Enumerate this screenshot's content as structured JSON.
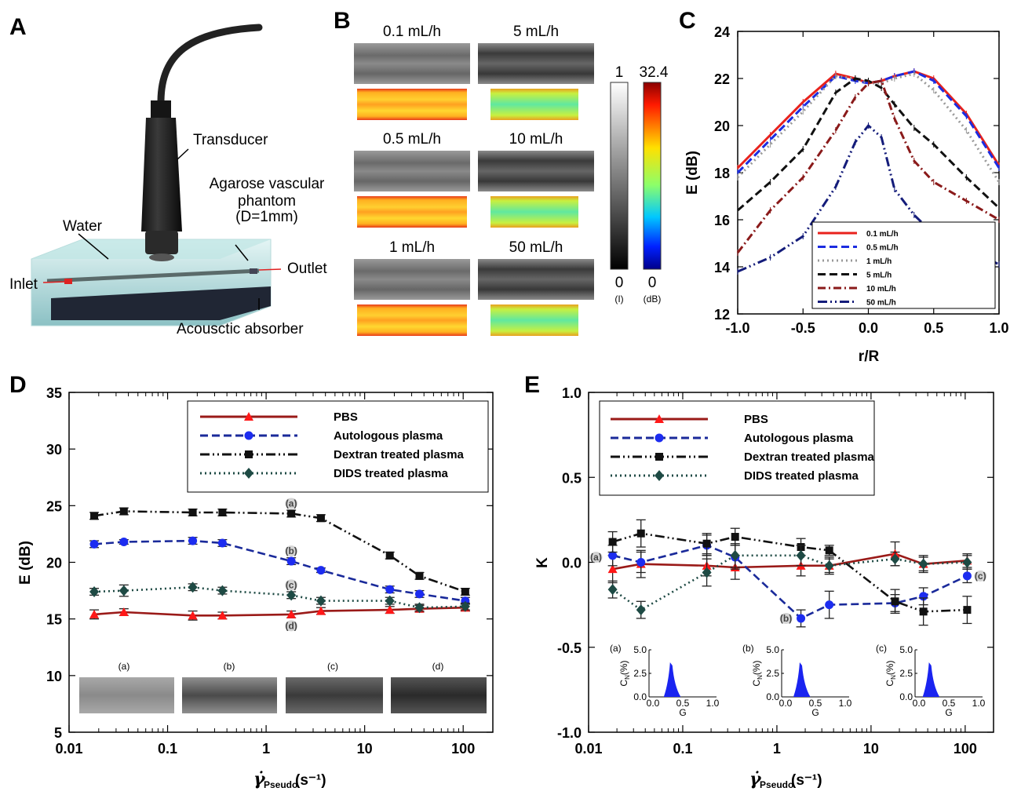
{
  "panel_labels": [
    "A",
    "B",
    "C",
    "D",
    "E"
  ],
  "panel_a": {
    "labels": {
      "transducer": "Transducer",
      "phantom_line1": "Agarose vascular",
      "phantom_line2": "phantom",
      "phantom_line3": "(D=1mm)",
      "water": "Water",
      "inlet": "Inlet",
      "outlet": "Outlet",
      "absorber": "Acousctic absorber"
    }
  },
  "panel_b": {
    "flow_rates": [
      "0.1 mL/h",
      "5 mL/h",
      "0.5 mL/h",
      "10 mL/h",
      "1 mL/h",
      "50 mL/h"
    ],
    "gray_scale": {
      "max": "1",
      "min": "0",
      "unit": "(I)"
    },
    "color_scale": {
      "max": "32.4",
      "min": "0",
      "unit": "(dB)"
    },
    "colors": {
      "high": "#c8141b",
      "mid": "#ffef2a",
      "low": "#1838c8"
    }
  },
  "chart_data": [
    {
      "panel": "C",
      "type": "line",
      "xlabel": "r/R",
      "ylabel": "E (dB)",
      "xlim": [
        -1.0,
        1.0
      ],
      "ylim": [
        12,
        24
      ],
      "xticks": [
        "-1.0",
        "-0.5",
        "0.0",
        "0.5",
        "1.0"
      ],
      "yticks": [
        "12",
        "14",
        "16",
        "18",
        "20",
        "22",
        "24"
      ],
      "legend_position": "bottom-right",
      "x": [
        -1.0,
        -0.75,
        -0.5,
        -0.25,
        -0.1,
        0.0,
        0.1,
        0.2,
        0.35,
        0.5,
        0.75,
        1.0
      ],
      "series": [
        {
          "name": "0.1 mL/h",
          "color": "#e8221c",
          "style": "solid",
          "values": [
            18.2,
            19.6,
            21.0,
            22.2,
            22.0,
            21.8,
            21.9,
            22.1,
            22.3,
            22.0,
            20.5,
            18.3
          ]
        },
        {
          "name": "0.5 mL/h",
          "color": "#1c2ce0",
          "style": "dashed",
          "values": [
            18.0,
            19.4,
            20.8,
            22.1,
            21.9,
            21.8,
            21.9,
            22.1,
            22.3,
            21.9,
            20.4,
            18.2
          ]
        },
        {
          "name": "1 mL/h",
          "color": "#999999",
          "style": "dotted",
          "values": [
            17.8,
            19.2,
            20.6,
            22.1,
            22.0,
            21.8,
            21.8,
            22.0,
            22.2,
            21.5,
            19.8,
            17.6
          ]
        },
        {
          "name": "5 mL/h",
          "color": "#111111",
          "style": "dashed",
          "values": [
            16.4,
            17.6,
            19.0,
            21.4,
            22.0,
            21.9,
            21.6,
            20.9,
            19.9,
            19.2,
            17.8,
            16.5
          ]
        },
        {
          "name": "10 mL/h",
          "color": "#8a1a1a",
          "style": "dashdot",
          "values": [
            14.6,
            16.4,
            17.8,
            19.8,
            21.2,
            21.8,
            21.9,
            20.3,
            18.5,
            17.6,
            16.8,
            16.0
          ]
        },
        {
          "name": "50 mL/h",
          "color": "#141c7a",
          "style": "dashdotdot",
          "values": [
            13.8,
            14.4,
            15.3,
            17.4,
            19.3,
            20.0,
            19.5,
            17.3,
            16.2,
            15.4,
            14.8,
            14.1
          ]
        }
      ]
    },
    {
      "panel": "D",
      "type": "line",
      "xlabel": "(s⁻¹)",
      "xlabel_symbol": "γ̇",
      "xlabel_sub": "Pseudo",
      "ylabel": "E (dB)",
      "xscale": "log",
      "xlim": [
        0.01,
        200
      ],
      "ylim": [
        5,
        35
      ],
      "xticks": [
        "0.01",
        "0.1",
        "1",
        "10",
        "100"
      ],
      "yticks": [
        "5",
        "10",
        "15",
        "20",
        "25",
        "30",
        "35"
      ],
      "legend_position": "top-right",
      "x": [
        0.018,
        0.036,
        0.18,
        0.36,
        1.8,
        3.6,
        18,
        36,
        105
      ],
      "series": [
        {
          "name": "PBS",
          "color": "#9a1a18",
          "marker_color": "#ff1818",
          "marker": "triangle",
          "style": "solid",
          "values": [
            15.4,
            15.6,
            15.3,
            15.3,
            15.4,
            15.7,
            15.8,
            15.9,
            16.0
          ],
          "errors": [
            0.4,
            0.3,
            0.4,
            0.3,
            0.3,
            0.3,
            0.3,
            0.3,
            0.3
          ]
        },
        {
          "name": "Autologous plasma",
          "color": "#1a2a9a",
          "marker_color": "#1c2cf0",
          "marker": "circle",
          "style": "dashed",
          "values": [
            21.6,
            21.8,
            21.9,
            21.7,
            20.1,
            19.3,
            17.6,
            17.2,
            16.6
          ],
          "errors": [
            0.3,
            0.2,
            0.3,
            0.3,
            0.3,
            0.2,
            0.3,
            0.3,
            0.3
          ]
        },
        {
          "name": "Dextran treated plasma",
          "color": "#111111",
          "marker_color": "#111111",
          "marker": "square",
          "style": "dashdotdot",
          "values": [
            24.1,
            24.5,
            24.4,
            24.4,
            24.3,
            23.9,
            20.6,
            18.8,
            17.4
          ],
          "errors": [
            0.3,
            0.3,
            0.3,
            0.3,
            0.3,
            0.3,
            0.3,
            0.3,
            0.3
          ]
        },
        {
          "name": "DIDS treated plasma",
          "color": "#1e4a44",
          "marker_color": "#1e4a44",
          "marker": "diamond",
          "style": "dotted",
          "values": [
            17.4,
            17.5,
            17.8,
            17.5,
            17.1,
            16.6,
            16.6,
            16.0,
            16.1
          ],
          "errors": [
            0.3,
            0.5,
            0.3,
            0.3,
            0.3,
            0.3,
            0.3,
            0.3,
            0.3
          ]
        }
      ],
      "point_labels": [
        {
          "text": "(a)",
          "x": 1.8,
          "y": 25.2
        },
        {
          "text": "(b)",
          "x": 1.8,
          "y": 21.0
        },
        {
          "text": "(c)",
          "x": 1.8,
          "y": 18.0
        },
        {
          "text": "(d)",
          "x": 1.8,
          "y": 14.4
        }
      ],
      "inset_images": {
        "labels": [
          "(a)",
          "(b)",
          "(c)",
          "(d)"
        ]
      }
    },
    {
      "panel": "E",
      "type": "line",
      "xlabel": "(s⁻¹)",
      "xlabel_symbol": "γ̇",
      "xlabel_sub": "Pseudo",
      "ylabel": "K",
      "xscale": "log",
      "xlim": [
        0.01,
        200
      ],
      "ylim": [
        -1.0,
        1.0
      ],
      "xticks": [
        "0.01",
        "0.1",
        "1",
        "10",
        "100"
      ],
      "yticks": [
        "-1.0",
        "-0.5",
        "0.0",
        "0.5",
        "1.0"
      ],
      "legend_position": "top-left",
      "x": [
        0.018,
        0.036,
        0.18,
        0.36,
        1.8,
        3.6,
        18,
        36,
        105
      ],
      "series": [
        {
          "name": "PBS",
          "color": "#9a1a18",
          "marker_color": "#ff1818",
          "marker": "triangle",
          "style": "solid",
          "values": [
            -0.04,
            -0.01,
            -0.02,
            -0.03,
            -0.02,
            -0.02,
            0.05,
            -0.01,
            0.01
          ],
          "errors": [
            0.08,
            0.08,
            0.06,
            0.07,
            0.06,
            0.05,
            0.07,
            0.05,
            0.04
          ]
        },
        {
          "name": "Autologous plasma",
          "color": "#1a2a9a",
          "marker_color": "#1c2cf0",
          "marker": "circle",
          "style": "dashed",
          "values": [
            0.04,
            0.0,
            0.1,
            0.03,
            -0.33,
            -0.25,
            -0.24,
            -0.2,
            -0.08
          ],
          "errors": [
            0.06,
            0.06,
            0.06,
            0.07,
            0.05,
            0.08,
            0.05,
            0.05,
            0.04
          ]
        },
        {
          "name": "Dextran treated plasma",
          "color": "#111111",
          "marker_color": "#111111",
          "marker": "square",
          "style": "dashdotdot",
          "values": [
            0.12,
            0.17,
            0.11,
            0.15,
            0.09,
            0.07,
            -0.23,
            -0.29,
            -0.28
          ],
          "errors": [
            0.06,
            0.08,
            0.06,
            0.05,
            0.05,
            0.03,
            0.07,
            0.08,
            0.08
          ]
        },
        {
          "name": "DIDS treated plasma",
          "color": "#1e4a44",
          "marker_color": "#1e4a44",
          "marker": "diamond",
          "style": "dotted",
          "values": [
            -0.16,
            -0.28,
            -0.06,
            0.04,
            0.04,
            -0.02,
            0.02,
            -0.01,
            0.0
          ],
          "errors": [
            0.05,
            0.05,
            0.08,
            0.07,
            0.06,
            0.04,
            0.04,
            0.04,
            0.04
          ]
        }
      ],
      "point_labels": [
        {
          "text": "(a)",
          "x": 0.012,
          "y": 0.03
        },
        {
          "text": "(b)",
          "x": 1.25,
          "y": -0.33
        },
        {
          "text": "(c)",
          "x": 145,
          "y": -0.08
        }
      ],
      "insets": {
        "labels": [
          "(a)",
          "(b)",
          "(c)"
        ],
        "xlabel": "G",
        "ylabel": "C",
        "ylabel_sub": "N",
        "ylabel_suffix": "(%)",
        "xticks": [
          "0.0",
          "0.5",
          "1.0"
        ],
        "yticks": [
          "0.0",
          "2.5",
          "5.0"
        ],
        "peaks": [
          0.3,
          0.25,
          0.18
        ]
      }
    }
  ]
}
